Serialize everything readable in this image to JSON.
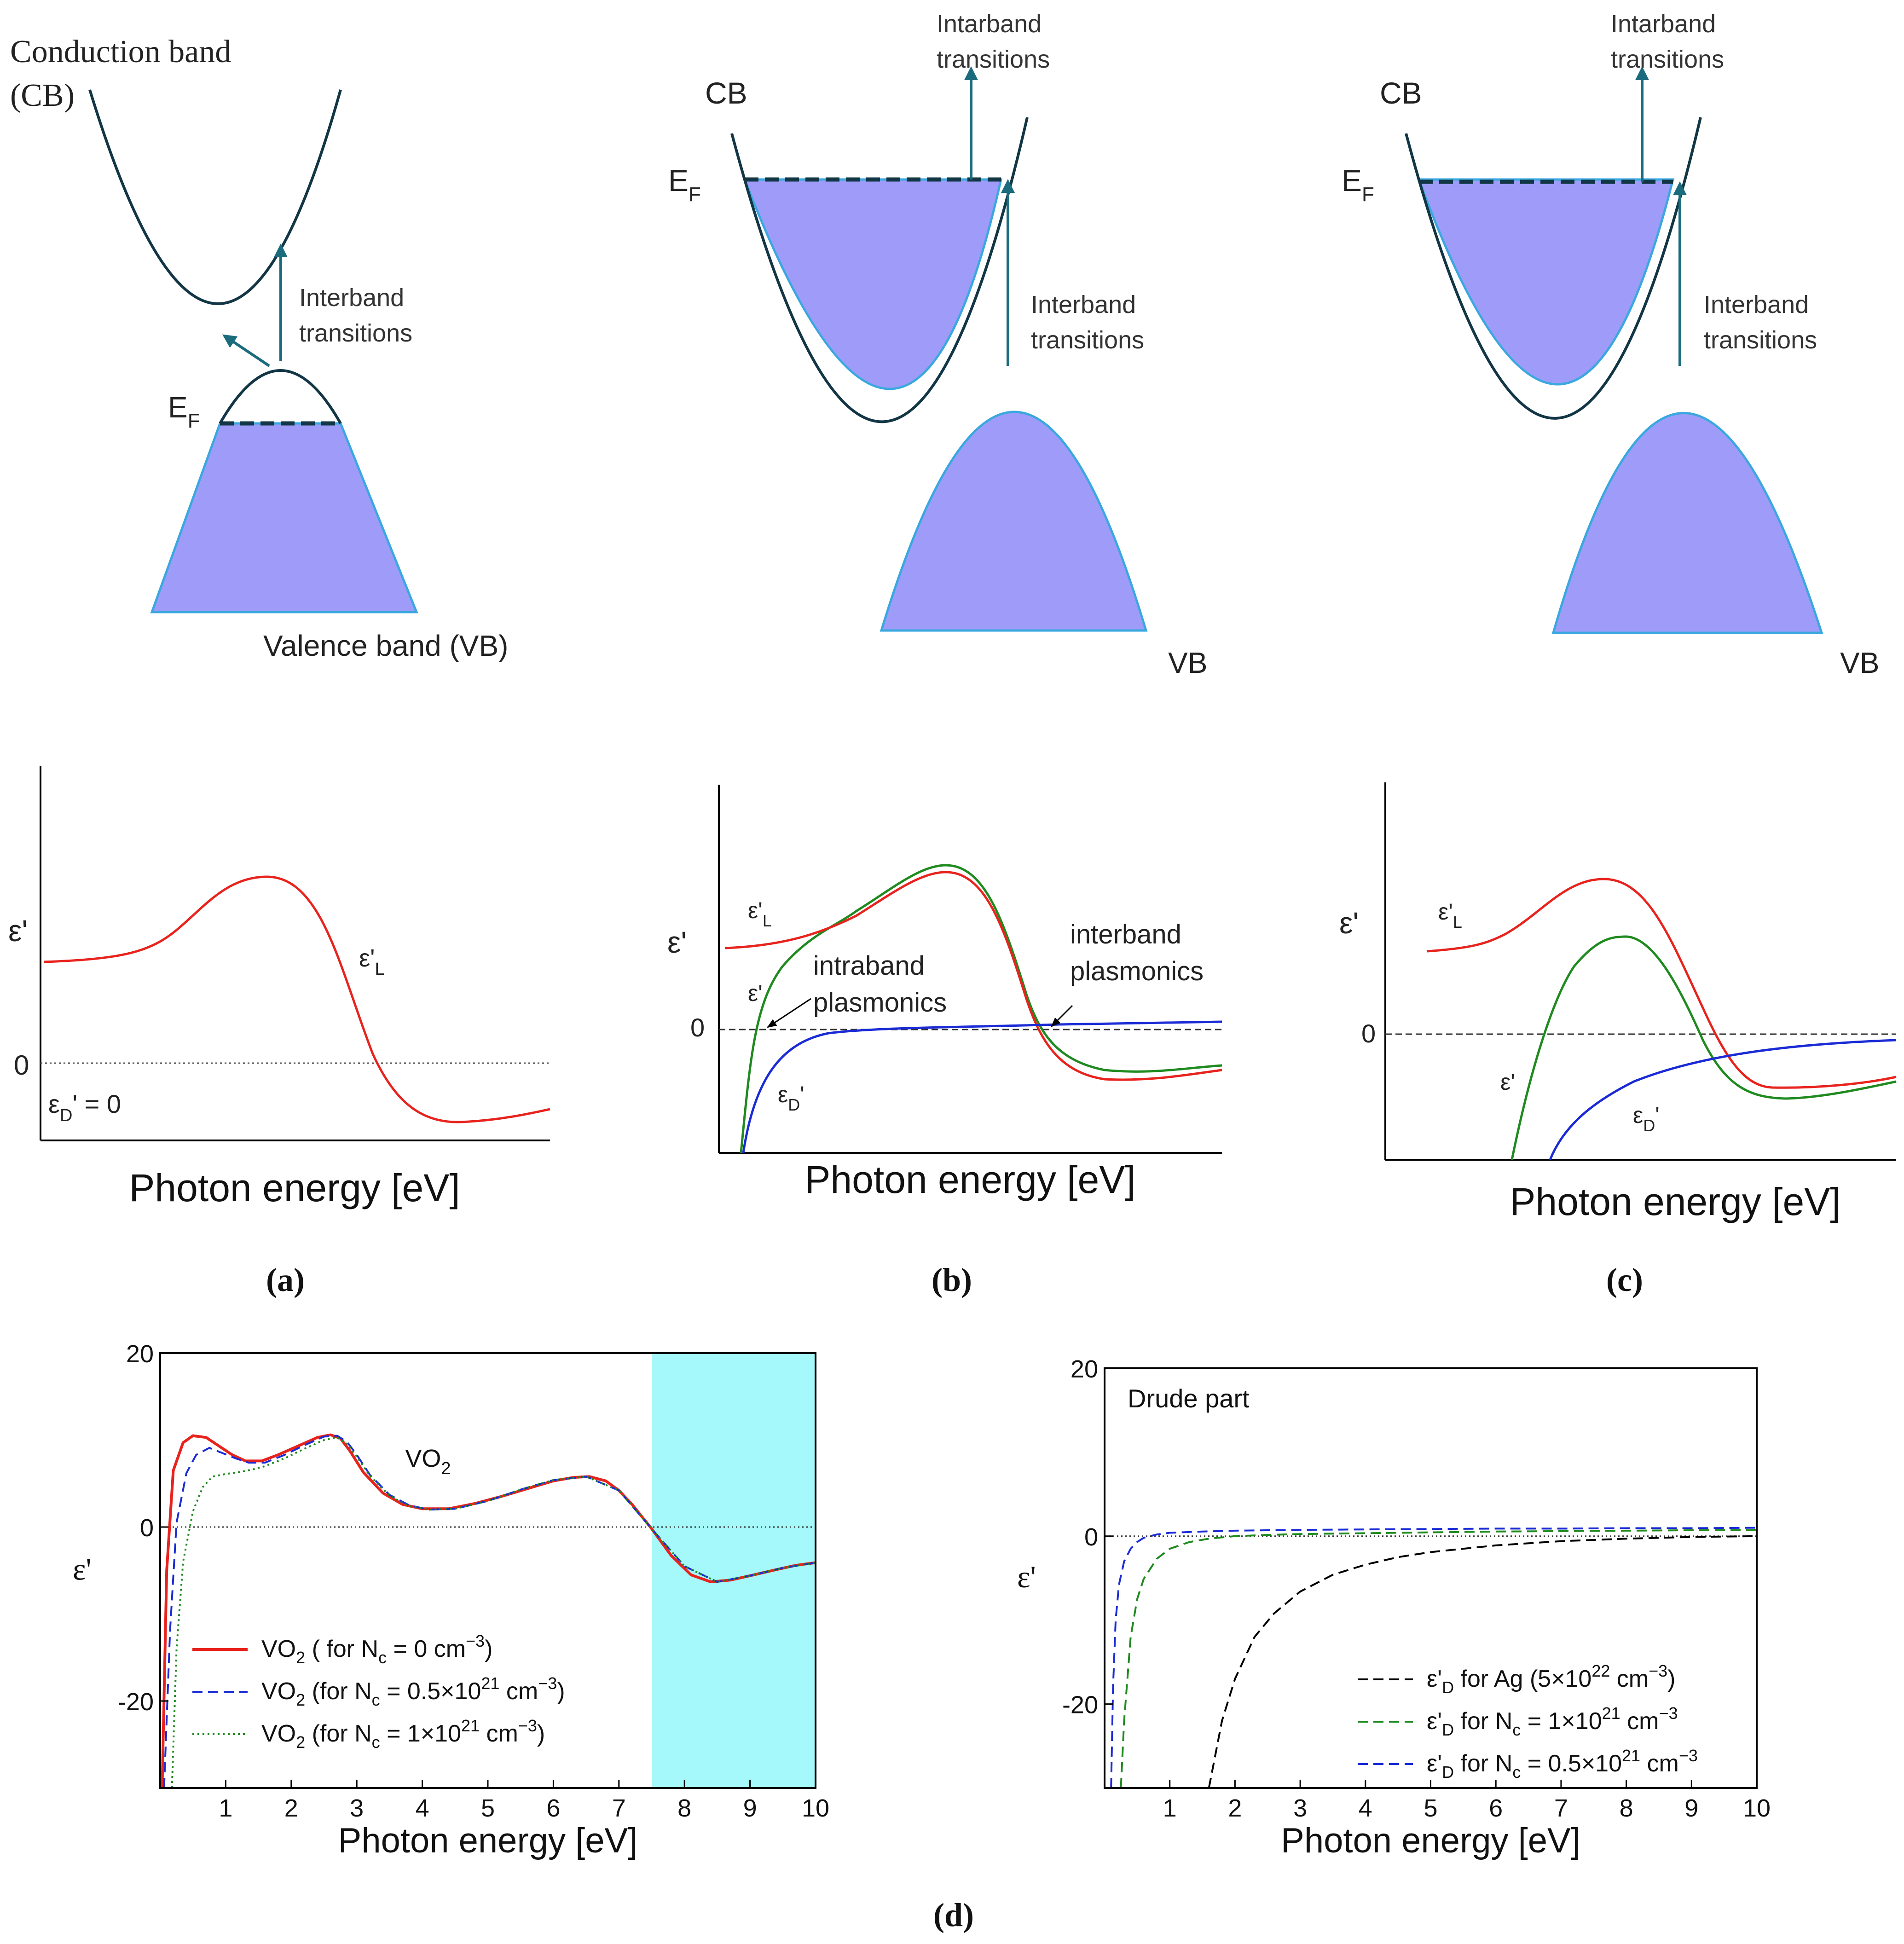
{
  "colors": {
    "fill": "#9f9cf9",
    "band_line": "#123645",
    "fill_edge": "#3aa8df",
    "arrow": "#1a6c7d",
    "red": "#e8231d",
    "green": "#1f8a1f",
    "blue": "#1a2bd6",
    "cyan": "#a6f9fb"
  },
  "top": {
    "a": {
      "cb_label": "Conduction band",
      "cb_label2": "(CB)",
      "vb_label": "Valence band (VB)",
      "ef_main": "E",
      "ef_sub": "F",
      "inter_1": "Interband",
      "inter_2": "transitions"
    },
    "b": {
      "cb_label": "CB",
      "vb_label": "VB",
      "ef_main": "E",
      "ef_sub": "F",
      "intar_1": "Intarband",
      "intar_2": "transitions",
      "inter_1": "Interband",
      "inter_2": "transitions"
    },
    "c": {
      "cb_label": "CB",
      "vb_label": "VB",
      "ef_main": "E",
      "ef_sub": "F",
      "intar_1": "Intarband",
      "intar_2": "transitions",
      "inter_1": "Interband",
      "inter_2": "transitions"
    }
  },
  "middle": {
    "a": {
      "ylabel": "ε'",
      "xlabel": "Photon energy [eV]",
      "zero": "0",
      "epsL_main": "ε'",
      "epsL_sub": "L",
      "epsD_main": "ε",
      "epsD_sub": "D",
      "epsD_rest": "' = 0"
    },
    "b": {
      "ylabel": "ε'",
      "xlabel": "Photon energy [eV]",
      "zero": "0",
      "epsL_main": "ε'",
      "epsL_sub": "L",
      "eps_main": "ε'",
      "epsD_main": "ε",
      "epsD_sub": "D",
      "epsD_prime": "'",
      "intra_1": "intraband",
      "intra_2": "plasmonics",
      "inter_1": "interband",
      "inter_2": "plasmonics"
    },
    "c": {
      "ylabel": "ε'",
      "xlabel": "Photon energy [eV]",
      "zero": "0",
      "epsL_main": "ε'",
      "epsL_sub": "L",
      "eps_main": "ε'",
      "epsD_main": "ε",
      "epsD_sub": "D",
      "epsD_prime": "'"
    }
  },
  "captions": {
    "a": "(a)",
    "b": "(b)",
    "c": "(c)",
    "d": "(d)"
  },
  "chart_data": [
    {
      "id": "d-left",
      "type": "line",
      "xlabel": "Photon energy [eV]",
      "ylabel": "ε'",
      "xlim": [
        0,
        10
      ],
      "ylim": [
        -30,
        20
      ],
      "xticks": [
        1,
        2,
        3,
        4,
        5,
        6,
        7,
        8,
        9,
        10
      ],
      "yticks": [
        20,
        0,
        -20
      ],
      "shaded_region": [
        7.5,
        10
      ],
      "annotation": {
        "label": "VO",
        "sub": "2",
        "x": 4.3,
        "y": 8.0
      },
      "legend": [
        {
          "pre": "VO",
          "sub": "2",
          "mid": " ( for N",
          "sub2": "c",
          "post1": " = 0 cm",
          "sup": "−3",
          "post2": ")"
        },
        {
          "pre": "VO",
          "sub": "2",
          "mid": " (for N",
          "sub2": "c",
          "post1": " = 0.5×10",
          "sup1": "21",
          "post3": " cm",
          "sup": "−3",
          "post2": ")"
        },
        {
          "pre": "VO",
          "sub": "2",
          "mid": " (for N",
          "sub2": "c",
          "post1": " = 1×10",
          "sup1": "21",
          "post3": " cm",
          "sup": "−3",
          "post2": ")"
        }
      ],
      "series": [
        {
          "name": "VO2 (for Nc = 0 cm-3)",
          "style": "solid",
          "color": "#e8231d",
          "x": [
            0.03,
            0.1,
            0.2,
            0.35,
            0.5,
            0.7,
            0.9,
            1.1,
            1.3,
            1.55,
            1.8,
            2.1,
            2.4,
            2.6,
            2.75,
            2.9,
            3.1,
            3.4,
            3.7,
            4.0,
            4.4,
            4.8,
            5.2,
            5.6,
            6.0,
            6.3,
            6.55,
            6.8,
            7.0,
            7.2,
            7.5,
            7.8,
            8.1,
            8.4,
            8.7,
            9.0,
            9.4,
            9.7,
            10.0
          ],
          "y": [
            -30,
            -5,
            6.5,
            9.7,
            10.5,
            10.3,
            9.3,
            8.3,
            7.6,
            7.6,
            8.3,
            9.3,
            10.3,
            10.6,
            10.2,
            8.7,
            6.3,
            3.9,
            2.6,
            2.1,
            2.1,
            2.7,
            3.5,
            4.4,
            5.3,
            5.7,
            5.8,
            5.3,
            4.2,
            2.6,
            -0.2,
            -3.3,
            -5.5,
            -6.3,
            -6.1,
            -5.6,
            -4.9,
            -4.4,
            -4.1
          ]
        },
        {
          "name": "VO2 (for Nc = 0.5×10^21 cm-3)",
          "style": "dashed",
          "color": "#1a2bd6",
          "x": [
            0.06,
            0.15,
            0.25,
            0.4,
            0.55,
            0.75,
            0.95,
            1.15,
            1.35,
            1.6,
            1.9,
            2.2,
            2.5,
            2.7,
            2.85,
            3.0,
            3.2,
            3.5,
            3.8,
            4.1,
            4.5,
            5.0,
            5.5,
            6.0,
            6.5,
            7.0,
            7.5,
            8.0,
            8.5,
            9.0,
            9.5,
            10.0
          ],
          "y": [
            -30,
            -12,
            0.5,
            6.2,
            8.3,
            9.1,
            8.5,
            7.9,
            7.4,
            7.4,
            8.3,
            9.4,
            10.4,
            10.5,
            9.8,
            8.3,
            6.0,
            3.7,
            2.5,
            2.0,
            2.1,
            3.0,
            4.3,
            5.4,
            5.8,
            4.2,
            -0.2,
            -4.5,
            -6.3,
            -5.6,
            -4.7,
            -4.1
          ]
        },
        {
          "name": "VO2 (for Nc = 1×10^21 cm-3)",
          "style": "dotted",
          "color": "#1f8a1f",
          "x": [
            0.18,
            0.25,
            0.35,
            0.5,
            0.65,
            0.8,
            1.0,
            1.2,
            1.4,
            1.6,
            1.9,
            2.2,
            2.5,
            2.7,
            2.85,
            3.0,
            3.2,
            3.5,
            3.8,
            4.1,
            4.5,
            5.0,
            5.5,
            6.0,
            6.5,
            7.0,
            7.5,
            8.0,
            8.5,
            9.0,
            9.5,
            10.0
          ],
          "y": [
            -30,
            -14,
            -4,
            1.8,
            4.6,
            5.8,
            6.1,
            6.3,
            6.6,
            7.0,
            7.9,
            9.0,
            10.0,
            10.3,
            9.6,
            8.1,
            5.9,
            3.6,
            2.4,
            2.0,
            2.1,
            3.0,
            4.3,
            5.4,
            5.8,
            4.2,
            -0.2,
            -4.5,
            -6.3,
            -5.6,
            -4.7,
            -4.1
          ]
        }
      ]
    },
    {
      "id": "d-right",
      "type": "line",
      "title": "Drude part",
      "xlabel": "Photon energy [eV]",
      "ylabel": "ε'",
      "xlim": [
        0,
        10
      ],
      "ylim": [
        -30,
        20
      ],
      "xticks": [
        1,
        2,
        3,
        4,
        5,
        6,
        7,
        8,
        9,
        10
      ],
      "yticks": [
        20,
        0,
        -20
      ],
      "legend": [
        {
          "pre": "ε'",
          "sub": "D",
          "mid": " for Ag (5×10",
          "sup1": "22",
          "post3": " cm",
          "sup": "−3",
          "post2": ")"
        },
        {
          "pre": "ε'",
          "sub": "D",
          "mid": " for N",
          "sub2": "c",
          "post1": " = 1×10",
          "sup1": "21",
          "post3": " cm",
          "sup": "−3",
          "post2": ""
        },
        {
          "pre": "ε'",
          "sub": "D",
          "mid": " for N",
          "sub2": "c",
          "post1": " = 0.5×10",
          "sup1": "21",
          "post3": " cm",
          "sup": "−3",
          "post2": ""
        }
      ],
      "series": [
        {
          "name": "ε'D for Ag (5×10^22 cm-3)",
          "style": "dashed",
          "color": "#000000",
          "x": [
            1.6,
            1.8,
            2.0,
            2.3,
            2.6,
            3.0,
            3.5,
            4.0,
            4.5,
            5.0,
            6.0,
            7.0,
            8.0,
            9.0,
            10.0
          ],
          "y": [
            -30,
            -22,
            -17,
            -12,
            -9.2,
            -6.6,
            -4.6,
            -3.4,
            -2.5,
            -1.9,
            -1.1,
            -0.6,
            -0.3,
            -0.1,
            0.0
          ]
        },
        {
          "name": "ε'D for Nc = 1×10^21 cm-3",
          "style": "dashed",
          "color": "#1f8a1f",
          "x": [
            0.25,
            0.3,
            0.4,
            0.5,
            0.6,
            0.8,
            1.0,
            1.3,
            1.6,
            2.0,
            2.5,
            3.0,
            4.0,
            5.0,
            6.0,
            7.0,
            8.0,
            9.0,
            10.0
          ],
          "y": [
            -30,
            -22,
            -12,
            -7.5,
            -5.1,
            -2.7,
            -1.5,
            -0.7,
            -0.3,
            0.0,
            0.15,
            0.25,
            0.35,
            0.45,
            0.55,
            0.6,
            0.65,
            0.7,
            0.75
          ]
        },
        {
          "name": "ε'D for Nc = 0.5×10^21 cm-3",
          "style": "dashed",
          "color": "#1a2bd6",
          "x": [
            0.1,
            0.13,
            0.17,
            0.22,
            0.3,
            0.4,
            0.5,
            0.6,
            0.8,
            1.0,
            1.5,
            2.0,
            3.0,
            4.0,
            5.0,
            6.0,
            7.0,
            8.0,
            9.0,
            10.0
          ],
          "y": [
            -30,
            -18,
            -10,
            -5.8,
            -3.0,
            -1.5,
            -0.7,
            -0.2,
            0.2,
            0.4,
            0.55,
            0.65,
            0.75,
            0.8,
            0.85,
            0.9,
            0.9,
            0.95,
            0.95,
            1.0
          ]
        }
      ]
    }
  ]
}
